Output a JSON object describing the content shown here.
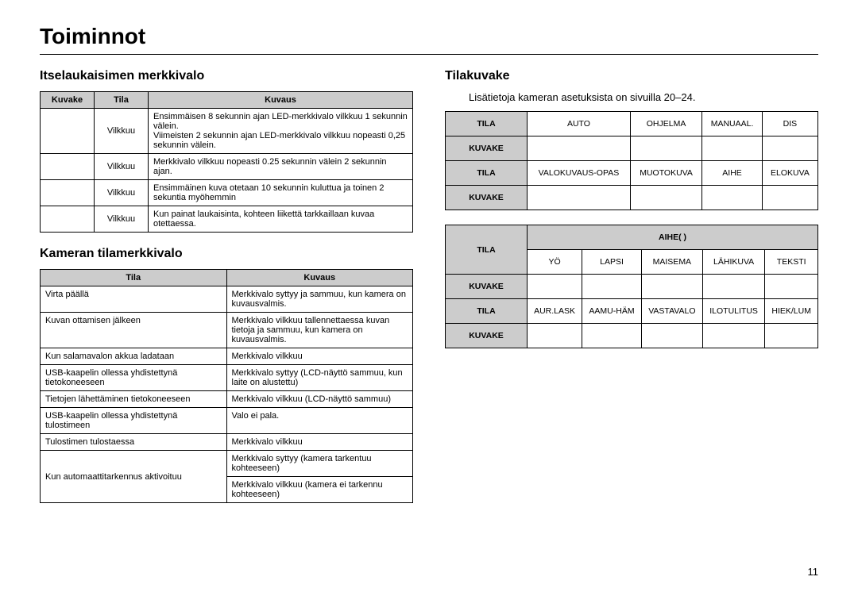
{
  "page": {
    "title": "Toiminnot",
    "number": "11"
  },
  "left": {
    "section1_title": "Itselaukaisimen merkkivalo",
    "t1": {
      "headers": {
        "c1": "Kuvake",
        "c2": "Tila",
        "c3": "Kuvaus"
      },
      "rows": [
        {
          "c1": "",
          "c2": "Vilkkuu",
          "c3": "Ensimmäisen 8 sekunnin ajan LED-merkkivalo vilkkuu 1 sekunnin välein.\nViimeisten 2 sekunnin ajan LED-merkkivalo vilkkuu nopeasti 0,25 sekunnin välein."
        },
        {
          "c1": "",
          "c2": "Vilkkuu",
          "c3": "Merkkivalo vilkkuu nopeasti 0.25 sekunnin välein 2 sekunnin ajan."
        },
        {
          "c1": "",
          "c2": "Vilkkuu",
          "c3": "Ensimmäinen kuva otetaan 10 sekunnin kuluttua ja toinen 2 sekuntia myöhemmin"
        },
        {
          "c1": "",
          "c2": "Vilkkuu",
          "c3": "Kun painat laukaisinta, kohteen liikettä tarkkaillaan kuvaa otettaessa."
        }
      ]
    },
    "section2_title": "Kameran tilamerkkivalo",
    "t2": {
      "headers": {
        "c1": "Tila",
        "c2": "Kuvaus"
      },
      "rows": [
        {
          "c1": "Virta päällä",
          "c2": "Merkkivalo syttyy ja sammuu, kun kamera on kuvausvalmis."
        },
        {
          "c1": "Kuvan ottamisen jälkeen",
          "c2": "Merkkivalo vilkkuu tallennettaessa kuvan tietoja ja sammuu, kun kamera on kuvausvalmis."
        },
        {
          "c1": "Kun salamavalon akkua ladataan",
          "c2": "Merkkivalo vilkkuu"
        },
        {
          "c1": "USB-kaapelin ollessa yhdistettynä tietokoneeseen",
          "c2": "Merkkivalo syttyy (LCD-näyttö sammuu, kun laite on alustettu)"
        },
        {
          "c1": "Tietojen lähettäminen tietokoneeseen",
          "c2": "Merkkivalo vilkkuu (LCD-näyttö sammuu)"
        },
        {
          "c1": "USB-kaapelin ollessa yhdistettynä tulostimeen",
          "c2": "Valo ei pala."
        },
        {
          "c1": "Tulostimen tulostaessa",
          "c2": "Merkkivalo vilkkuu"
        },
        {
          "c1_rowspan": 2,
          "c1": "Kun automaattitarkennus aktivoituu",
          "c2": "Merkkivalo syttyy (kamera tarkentuu kohteeseen)"
        },
        {
          "c2": "Merkkivalo vilkkuu (kamera ei tarkennu kohteeseen)"
        }
      ]
    }
  },
  "right": {
    "section_title": "Tilakuvake",
    "intro": "Lisätietoja kameran asetuksista on sivuilla 20–24.",
    "labels": {
      "tila": "TILA",
      "kuvake": "KUVAKE"
    },
    "tableA": {
      "row1": [
        "AUTO",
        "OHJELMA",
        "MANUAAL.",
        "DIS"
      ],
      "row2": [
        "",
        "",
        "",
        ""
      ],
      "row3": [
        "VALOKUVAUS-OPAS",
        "MUOTOKUVA",
        "AIHE",
        "ELOKUVA"
      ],
      "row4": [
        "",
        "",
        "",
        ""
      ]
    },
    "tableB": {
      "span_header": "AIHE(            )",
      "row1": [
        "YÖ",
        "LAPSI",
        "MAISEMA",
        "LÄHIKUVA",
        "TEKSTI"
      ],
      "row2": [
        "",
        "",
        "",
        "",
        ""
      ],
      "row3": [
        "AUR.LASK",
        "AAMU-HÄM",
        "VASTAVALO",
        "ILOTULITUS",
        "HIEK/LUM"
      ],
      "row4": [
        "",
        "",
        "",
        "",
        ""
      ]
    }
  }
}
